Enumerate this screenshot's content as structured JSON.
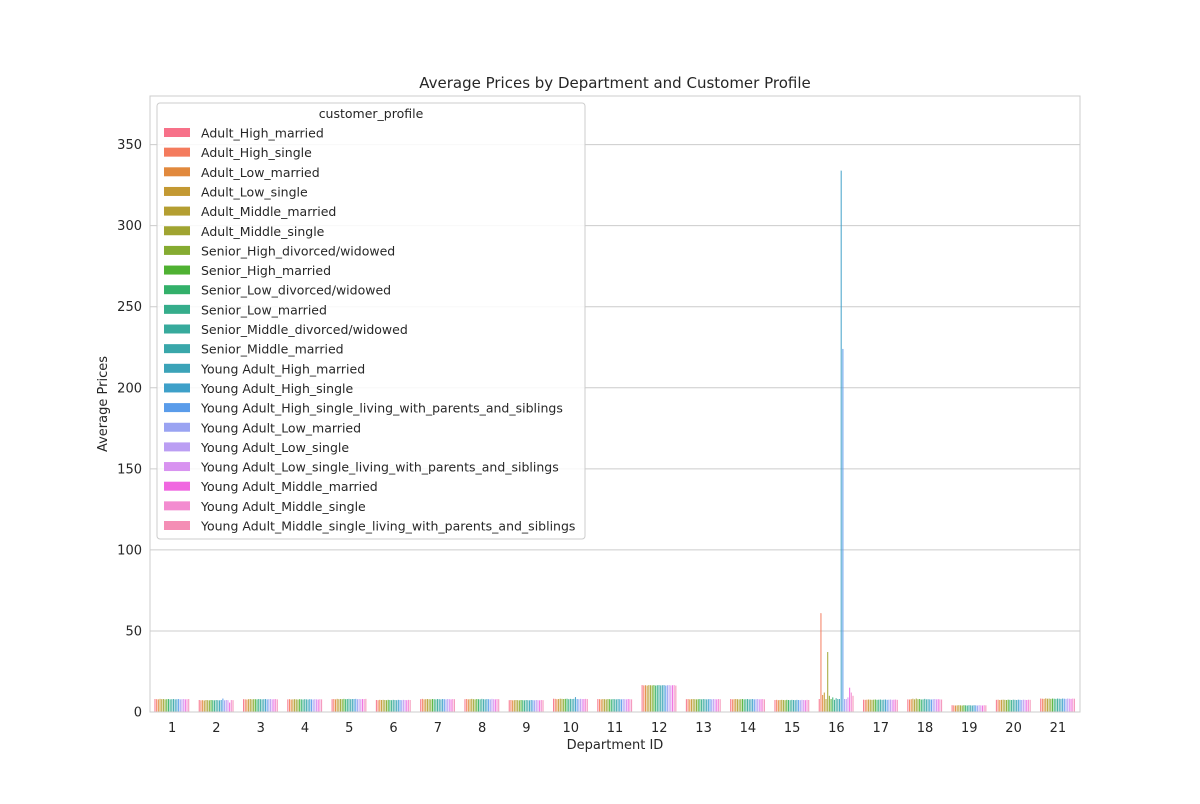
{
  "chart_data": {
    "type": "bar",
    "title": "Average Prices by Department and Customer Profile",
    "xlabel": "Department ID",
    "ylabel": "Average Prices",
    "ylim": [
      0,
      380
    ],
    "yticks": [
      0,
      50,
      100,
      150,
      200,
      250,
      300,
      350
    ],
    "grid": "y",
    "legend_title": "customer_profile",
    "legend_placement": "top-left",
    "categories": [
      "1",
      "2",
      "3",
      "4",
      "5",
      "6",
      "7",
      "8",
      "9",
      "10",
      "11",
      "12",
      "13",
      "14",
      "15",
      "16",
      "17",
      "18",
      "19",
      "20",
      "21"
    ],
    "series": [
      {
        "name": "Adult_High_married",
        "color": "#f77189",
        "values": [
          8.0,
          7.4,
          7.9,
          7.8,
          7.9,
          7.4,
          7.9,
          7.9,
          7.3,
          8.2,
          8.0,
          16.6,
          7.9,
          8.0,
          7.4,
          8.0,
          7.6,
          7.8,
          4.2,
          7.5,
          8.3
        ]
      },
      {
        "name": "Adult_High_single",
        "color": "#f47b5d",
        "values": [
          7.9,
          7.2,
          7.8,
          7.9,
          8.0,
          7.3,
          8.1,
          8.0,
          7.4,
          8.1,
          7.9,
          16.4,
          8.0,
          7.8,
          7.5,
          61.0,
          7.5,
          7.7,
          4.1,
          7.6,
          8.2
        ]
      },
      {
        "name": "Adult_Low_married",
        "color": "#e1893d",
        "values": [
          7.8,
          7.3,
          7.7,
          7.7,
          7.8,
          7.5,
          7.8,
          7.8,
          7.2,
          7.9,
          7.8,
          16.5,
          7.8,
          7.9,
          7.3,
          10.5,
          7.6,
          7.9,
          4.0,
          7.4,
          8.1
        ]
      },
      {
        "name": "Adult_Low_single",
        "color": "#c39933",
        "values": [
          8.1,
          7.1,
          7.9,
          7.8,
          8.1,
          7.4,
          7.9,
          7.9,
          7.3,
          8.0,
          8.0,
          16.3,
          7.9,
          8.0,
          7.4,
          12.0,
          7.7,
          8.2,
          4.1,
          7.5,
          8.4
        ]
      },
      {
        "name": "Adult_Middle_married",
        "color": "#b49e31",
        "values": [
          7.9,
          7.4,
          8.0,
          7.9,
          7.9,
          7.5,
          8.0,
          8.1,
          7.4,
          8.2,
          7.9,
          16.6,
          8.0,
          7.9,
          7.5,
          8.0,
          7.6,
          7.8,
          4.2,
          7.6,
          8.2
        ]
      },
      {
        "name": "Adult_Middle_single",
        "color": "#a0a431",
        "values": [
          8.0,
          7.3,
          7.8,
          7.8,
          8.0,
          7.4,
          7.9,
          7.9,
          7.3,
          8.1,
          7.8,
          16.5,
          7.9,
          7.8,
          7.4,
          37.0,
          7.5,
          8.3,
          4.1,
          7.5,
          8.3
        ]
      },
      {
        "name": "Senior_High_divorced/widowed",
        "color": "#85ab31",
        "values": [
          7.8,
          7.2,
          7.9,
          7.7,
          7.9,
          7.3,
          7.8,
          7.8,
          7.2,
          8.0,
          8.0,
          16.4,
          7.8,
          7.9,
          7.3,
          10.0,
          7.6,
          7.9,
          4.0,
          7.4,
          8.1
        ]
      },
      {
        "name": "Senior_High_married",
        "color": "#4fb132",
        "values": [
          7.9,
          7.4,
          7.9,
          7.9,
          8.1,
          7.5,
          8.0,
          8.0,
          7.4,
          8.1,
          7.9,
          16.6,
          7.9,
          8.0,
          7.5,
          8.0,
          7.7,
          8.0,
          4.2,
          7.6,
          8.3
        ]
      },
      {
        "name": "Senior_Low_divorced/widowed",
        "color": "#33b06a",
        "values": [
          8.0,
          7.3,
          7.8,
          7.8,
          7.9,
          7.4,
          7.9,
          7.9,
          7.3,
          8.2,
          7.8,
          16.3,
          8.0,
          7.8,
          7.4,
          9.0,
          7.5,
          7.7,
          4.1,
          7.5,
          8.2
        ]
      },
      {
        "name": "Senior_Low_married",
        "color": "#35ad8b",
        "values": [
          7.8,
          7.2,
          8.0,
          7.7,
          8.0,
          7.3,
          7.8,
          7.8,
          7.2,
          7.9,
          8.0,
          16.5,
          7.8,
          7.9,
          7.3,
          7.5,
          7.6,
          7.8,
          4.0,
          7.4,
          8.1
        ]
      },
      {
        "name": "Senior_Middle_divorced/widowed",
        "color": "#37aa9c",
        "values": [
          7.9,
          7.4,
          7.9,
          7.9,
          8.1,
          7.5,
          8.0,
          8.1,
          7.4,
          8.1,
          7.9,
          16.6,
          8.0,
          8.0,
          7.5,
          8.5,
          7.7,
          8.1,
          4.2,
          7.6,
          8.3
        ]
      },
      {
        "name": "Senior_Middle_married",
        "color": "#39a7aa",
        "values": [
          8.0,
          7.3,
          7.8,
          7.8,
          7.9,
          7.4,
          7.9,
          7.9,
          7.3,
          8.0,
          7.8,
          16.4,
          7.9,
          7.8,
          7.4,
          8.0,
          7.5,
          7.8,
          4.1,
          7.5,
          8.2
        ]
      },
      {
        "name": "Young Adult_High_married",
        "color": "#3ba3b8",
        "values": [
          7.8,
          7.2,
          7.9,
          7.7,
          8.0,
          7.3,
          7.8,
          7.8,
          7.2,
          8.1,
          8.0,
          16.5,
          7.8,
          7.9,
          7.3,
          8.0,
          7.6,
          7.9,
          4.0,
          7.4,
          8.1
        ]
      },
      {
        "name": "Young Adult_High_single",
        "color": "#3ea0c9",
        "values": [
          7.9,
          7.4,
          8.0,
          7.9,
          8.0,
          7.5,
          8.0,
          8.0,
          7.4,
          9.2,
          7.9,
          16.6,
          7.9,
          8.0,
          7.5,
          334.0,
          7.7,
          7.8,
          4.2,
          7.6,
          8.3
        ]
      },
      {
        "name": "Young Adult_High_single_living_with_parents_and_siblings",
        "color": "#5a9cea",
        "values": [
          8.0,
          8.3,
          7.8,
          7.8,
          8.1,
          7.4,
          7.9,
          7.9,
          7.3,
          8.0,
          7.8,
          16.3,
          8.0,
          7.8,
          7.4,
          224.0,
          7.5,
          7.7,
          4.1,
          7.5,
          8.2
        ]
      },
      {
        "name": "Young Adult_Low_married",
        "color": "#9aa3f2",
        "values": [
          7.8,
          7.2,
          7.9,
          7.7,
          7.9,
          7.3,
          7.8,
          7.8,
          7.2,
          7.9,
          8.0,
          16.5,
          7.8,
          7.9,
          7.3,
          8.0,
          7.6,
          7.9,
          4.0,
          7.4,
          8.1
        ]
      },
      {
        "name": "Young Adult_Low_single",
        "color": "#bb9ef3",
        "values": [
          7.9,
          7.4,
          8.0,
          7.9,
          8.0,
          7.5,
          8.0,
          8.1,
          7.4,
          8.1,
          7.9,
          16.6,
          8.0,
          8.0,
          7.5,
          8.0,
          7.7,
          8.0,
          4.2,
          7.6,
          8.3
        ]
      },
      {
        "name": "Young Adult_Low_single_living_with_parents_and_siblings",
        "color": "#d893f0",
        "values": [
          8.0,
          7.3,
          7.8,
          7.8,
          7.9,
          7.4,
          7.9,
          7.9,
          7.3,
          8.0,
          7.8,
          16.4,
          7.9,
          7.8,
          7.4,
          9.0,
          7.5,
          7.8,
          4.1,
          7.5,
          8.2
        ]
      },
      {
        "name": "Young Adult_Middle_married",
        "color": "#f067e0",
        "values": [
          7.8,
          5.8,
          7.9,
          7.7,
          8.0,
          7.3,
          7.8,
          7.8,
          7.2,
          8.0,
          8.0,
          16.5,
          7.8,
          7.9,
          7.3,
          15.0,
          7.6,
          7.9,
          4.0,
          7.4,
          8.1
        ]
      },
      {
        "name": "Young Adult_Middle_single",
        "color": "#f38cd0",
        "values": [
          7.9,
          7.4,
          8.0,
          7.9,
          8.0,
          7.5,
          8.0,
          8.0,
          7.4,
          8.1,
          7.9,
          16.6,
          8.0,
          8.0,
          7.5,
          12.0,
          7.7,
          7.8,
          4.2,
          7.6,
          8.3
        ]
      },
      {
        "name": "Young Adult_Middle_single_living_with_parents_and_siblings",
        "color": "#f48eb5",
        "values": [
          8.0,
          7.3,
          7.8,
          7.8,
          8.1,
          7.4,
          7.9,
          7.9,
          7.3,
          8.0,
          7.8,
          16.3,
          7.9,
          7.8,
          7.4,
          10.0,
          7.5,
          7.7,
          4.1,
          7.5,
          8.2
        ]
      }
    ]
  }
}
